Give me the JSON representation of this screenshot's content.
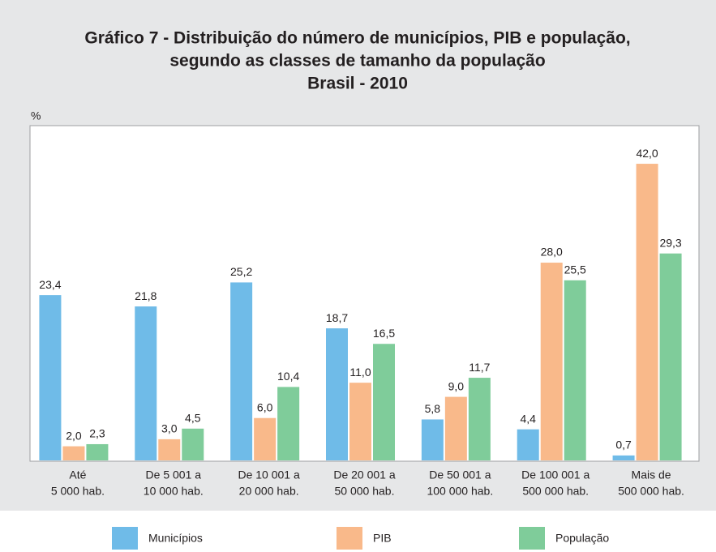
{
  "chart_data": {
    "type": "bar",
    "title": [
      "Gráfico 7 - Distribuição do número de municípios, PIB e população,",
      "segundo as classes de tamanho da população",
      "Brasil - 2010"
    ],
    "y_label": "%",
    "categories": [
      [
        "Até",
        "5 000 hab."
      ],
      [
        "De 5 001 a",
        "10 000 hab."
      ],
      [
        "De 10 001 a",
        "20 000 hab."
      ],
      [
        "De 20 001 a",
        "50 000 hab."
      ],
      [
        "De 50 001 a",
        "100 000 hab."
      ],
      [
        "De 100 001 a",
        "500 000 hab."
      ],
      [
        "Mais de",
        "500 000 hab."
      ]
    ],
    "series": [
      {
        "name": "Municípios",
        "color": "#6fbbe8",
        "values": [
          23.4,
          21.8,
          25.2,
          18.7,
          5.8,
          4.4,
          0.7
        ],
        "value_labels": [
          "23,4",
          "21,8",
          "25,2",
          "18,7",
          "5,8",
          "4,4",
          "0,7"
        ]
      },
      {
        "name": "PIB",
        "color": "#f9b98a",
        "values": [
          2.0,
          3.0,
          6.0,
          11.0,
          9.0,
          28.0,
          42.0
        ],
        "value_labels": [
          "2,0",
          "3,0",
          "6,0",
          "11,0",
          "9,0",
          "28,0",
          "42,0"
        ]
      },
      {
        "name": "População",
        "color": "#7fcc9a",
        "values": [
          2.3,
          4.5,
          10.4,
          16.5,
          11.7,
          25.5,
          29.3
        ],
        "value_labels": [
          "2,3",
          "4,5",
          "10,4",
          "16,5",
          "11,7",
          "25,5",
          "29,3"
        ]
      }
    ],
    "ylim": [
      0,
      47.4
    ]
  }
}
